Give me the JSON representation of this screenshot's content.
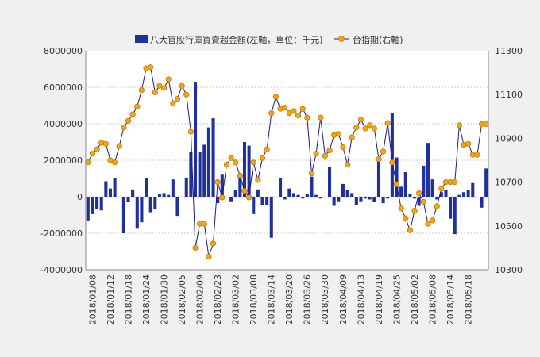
{
  "chart_data": {
    "type": "bar+line",
    "legend_position": "top",
    "grid": true,
    "series": [
      {
        "name": "八大官股行庫買賣超金額(左軸，單位：千元)",
        "type": "bar",
        "axis": "left",
        "color": "#1f2f9e",
        "values": [
          -1300000,
          -950000,
          -700000,
          -750000,
          850000,
          450000,
          1000000,
          0,
          -2000000,
          -300000,
          400000,
          -1750000,
          -1400000,
          1000000,
          -850000,
          -700000,
          150000,
          200000,
          100000,
          950000,
          -1050000,
          0,
          1050000,
          2450000,
          6300000,
          2450000,
          2850000,
          3800000,
          4300000,
          -350000,
          1250000,
          0,
          -250000,
          350000,
          1000000,
          3000000,
          2800000,
          -950000,
          400000,
          -450000,
          -450000,
          -2250000,
          0,
          1000000,
          -150000,
          450000,
          200000,
          100000,
          -100000,
          150000,
          1100000,
          100000,
          -100000,
          0,
          1650000,
          -500000,
          -250000,
          700000,
          350000,
          200000,
          -450000,
          -250000,
          -100000,
          -150000,
          -300000,
          2000000,
          -350000,
          -100000,
          4600000,
          2150000,
          550000,
          1350000,
          150000,
          -100000,
          -500000,
          1700000,
          2950000,
          950000,
          -150000,
          250000,
          350000,
          -1200000,
          -2050000,
          100000,
          250000,
          350000,
          750000,
          0,
          -600000,
          1550000
        ]
      },
      {
        "name": "台指期(右軸)",
        "type": "line",
        "axis": "right",
        "color": "#1a1a8c",
        "marker_color": "#f5a50f",
        "values": [
          10790,
          10830,
          10850,
          10880,
          10875,
          10800,
          10790,
          10865,
          10950,
          10980,
          11010,
          11045,
          11120,
          11220,
          11225,
          11110,
          11140,
          11130,
          11170,
          11060,
          11080,
          11140,
          11100,
          10930,
          10400,
          10510,
          10510,
          10360,
          10420,
          10700,
          10630,
          10780,
          10810,
          10790,
          10730,
          10660,
          10630,
          10790,
          10710,
          10810,
          10850,
          11015,
          11090,
          11035,
          11040,
          11015,
          11025,
          11005,
          11035,
          10995,
          10740,
          10830,
          10995,
          10820,
          10845,
          10915,
          10920,
          10860,
          10780,
          10905,
          10950,
          10985,
          10945,
          10960,
          10945,
          10805,
          10840,
          10970,
          10790,
          10690,
          10580,
          10535,
          10480,
          10570,
          10650,
          10610,
          10510,
          10525,
          10590,
          10670,
          10700,
          10700,
          10700,
          10960,
          10870,
          10875,
          10825,
          10825,
          10965,
          10965
        ]
      }
    ],
    "x_tick_labels": [
      "2018/01/08",
      "2018/01/12",
      "2018/01/18",
      "2018/01/24",
      "2018/01/30",
      "2018/02/05",
      "2018/02/09",
      "2018/02/23",
      "2018/03/02",
      "2018/03/08",
      "2018/03/14",
      "2018/03/20",
      "2018/03/26",
      "2018/03/30",
      "2018/04/09",
      "2018/04/13",
      "2018/04/19",
      "2018/04/25",
      "2018/05/02",
      "2018/05/08",
      "2018/05/14",
      "2018/05/18"
    ],
    "y_left": {
      "min": -4000000,
      "max": 8000000,
      "ticks": [
        -4000000,
        -2000000,
        0,
        2000000,
        4000000,
        6000000,
        8000000
      ],
      "tick_labels": [
        "-4000000",
        "-2000000",
        "0",
        "2000000",
        "4000000",
        "6000000",
        "8000000"
      ]
    },
    "y_right": {
      "min": 10300,
      "max": 11300,
      "ticks": [
        10300,
        10500,
        10700,
        10900,
        11100,
        11300
      ],
      "tick_labels": [
        "10300",
        "10500",
        "10700",
        "10900",
        "11100",
        "11300"
      ]
    }
  }
}
